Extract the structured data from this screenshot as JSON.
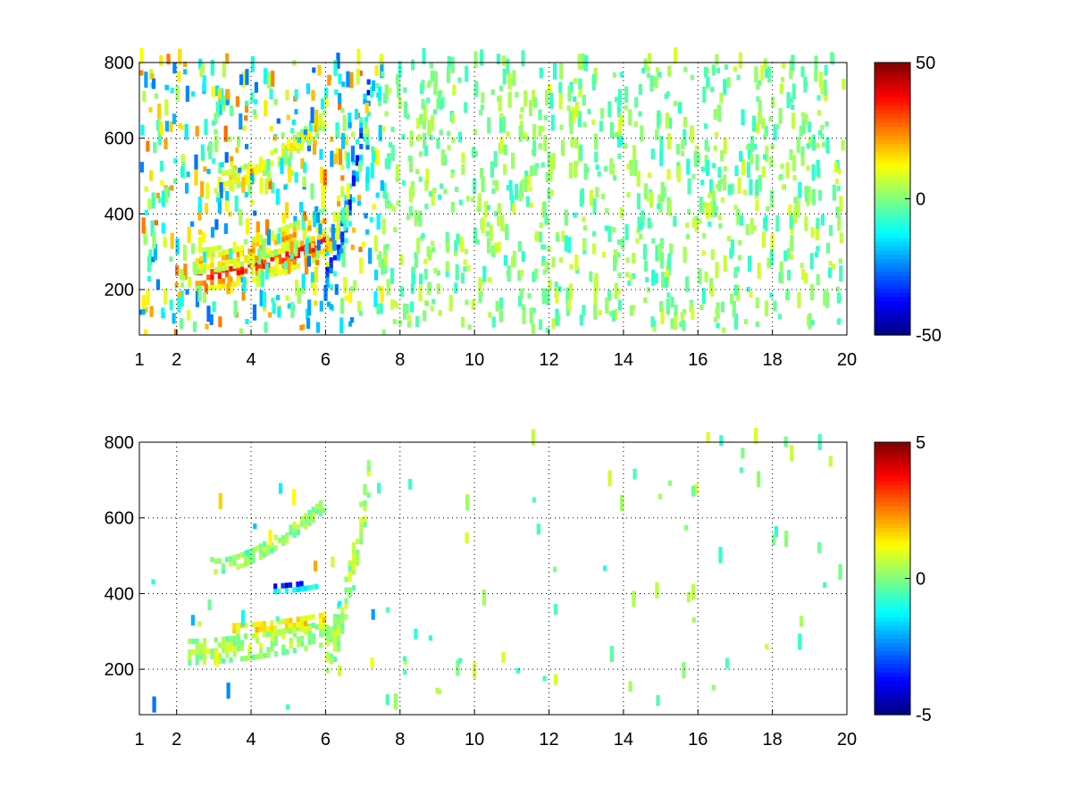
{
  "chart_data": [
    {
      "type": "heatmap",
      "title": "",
      "xlabel": "",
      "ylabel": "",
      "xlim": [
        1,
        20
      ],
      "ylim": [
        80,
        800
      ],
      "xticks": [
        1,
        2,
        4,
        6,
        8,
        10,
        12,
        14,
        16,
        18,
        20
      ],
      "xtick_labels": [
        "1",
        "2",
        "4",
        "6",
        "8",
        "10",
        "12",
        "14",
        "16",
        "18",
        "20"
      ],
      "yticks": [
        200,
        400,
        600,
        800
      ],
      "ytick_labels": [
        "200",
        "400",
        "600",
        "800"
      ],
      "grid": true,
      "colormap": "jet",
      "clim": [
        -50,
        50
      ],
      "colorbar_ticks": [
        -50,
        0,
        50
      ],
      "colorbar_labels": [
        "-50",
        "0",
        "50"
      ],
      "features": [
        {
          "x": [
            2.5,
            6.0
          ],
          "y_start": 230,
          "y_end": 320,
          "value": 40,
          "width": 35
        },
        {
          "x": [
            2.5,
            6.0
          ],
          "y_start": 270,
          "y_end": 380,
          "value": 20,
          "width": 30
        },
        {
          "x": [
            3.0,
            6.0
          ],
          "y_start": 480,
          "y_end": 650,
          "value": 15,
          "width": 25
        },
        {
          "x": [
            6.0,
            7.2
          ],
          "y_start": 250,
          "y_end": 780,
          "value": -40,
          "width": 60
        },
        {
          "x": [
            6.0,
            6.6
          ],
          "y_start": 300,
          "y_end": 650,
          "value": 25,
          "width": 40
        }
      ]
    },
    {
      "type": "heatmap",
      "title": "",
      "xlabel": "",
      "ylabel": "",
      "xlim": [
        1,
        20
      ],
      "ylim": [
        80,
        800
      ],
      "xticks": [
        1,
        2,
        4,
        6,
        8,
        10,
        12,
        14,
        16,
        18,
        20
      ],
      "xtick_labels": [
        "1",
        "2",
        "4",
        "6",
        "8",
        "10",
        "12",
        "14",
        "16",
        "18",
        "20"
      ],
      "yticks": [
        200,
        400,
        600,
        800
      ],
      "ytick_labels": [
        "200",
        "400",
        "600",
        "800"
      ],
      "grid": true,
      "colormap": "jet",
      "clim": [
        -5,
        5
      ],
      "colorbar_ticks": [
        -5,
        0,
        5
      ],
      "colorbar_labels": [
        "-5",
        "0",
        "5"
      ],
      "features": [
        {
          "x": [
            2.3,
            6.0
          ],
          "y_start": 240,
          "y_end": 290,
          "value": 0.5,
          "width": 30
        },
        {
          "x": [
            3.5,
            6.0
          ],
          "y_start": 300,
          "y_end": 330,
          "value": 2.0,
          "width": 20
        },
        {
          "x": [
            3.0,
            6.0
          ],
          "y_start": 470,
          "y_end": 640,
          "value": 0.3,
          "width": 20
        },
        {
          "x": [
            4.5,
            5.8
          ],
          "y_start": 410,
          "y_end": 425,
          "value": -4.5,
          "width": 12
        },
        {
          "x": [
            6.0,
            7.2
          ],
          "y_start": 250,
          "y_end": 760,
          "value": 0.5,
          "width": 60
        }
      ]
    }
  ]
}
